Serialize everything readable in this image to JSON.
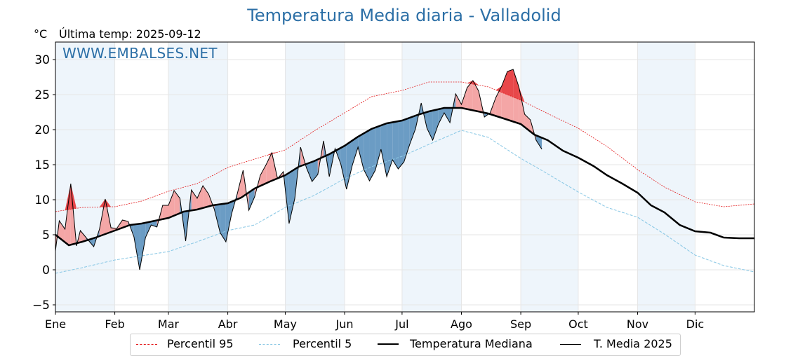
{
  "header": {
    "title": "Temperatura Media diaria - Valladolid",
    "unit": "°C",
    "last_temp": "Última temp: 2025-09-12",
    "watermark": "WWW.EMBALSES.NET"
  },
  "colors": {
    "title": "#2c6fa6",
    "p95": "#e31a1c",
    "p5": "#8ecae6",
    "median": "#000000",
    "t2025": "#000000",
    "above_median_fill": "#f4a6a6",
    "above_p95_fill": "#e8474a",
    "below_median_fill": "#6b9cc4",
    "month_band": "#eef5fb"
  },
  "chart_data": {
    "type": "line",
    "title": "Temperatura Media diaria - Valladolid",
    "ylabel": "°C",
    "ylim": [
      -6,
      32.5
    ],
    "yticks": [
      -5,
      0,
      5,
      10,
      15,
      20,
      25,
      30
    ],
    "ytick_labels": [
      "−5",
      "0",
      "5",
      "10",
      "15",
      "20",
      "25",
      "30"
    ],
    "xlim": [
      1,
      366
    ],
    "xtick_days": [
      1,
      32,
      60,
      91,
      121,
      152,
      182,
      213,
      244,
      274,
      305,
      335
    ],
    "xtick_labels": [
      "Ene",
      "Feb",
      "Mar",
      "Abr",
      "May",
      "Jun",
      "Jul",
      "Ago",
      "Sep",
      "Oct",
      "Nov",
      "Dic"
    ],
    "grid": true,
    "legend_position": "bottom",
    "series": [
      {
        "name": "Percentil 95",
        "x": [
          1,
          15,
          32,
          46,
          60,
          75,
          91,
          105,
          121,
          136,
          152,
          166,
          182,
          196,
          213,
          227,
          244,
          258,
          274,
          289,
          305,
          319,
          335,
          350,
          366
        ],
        "y": [
          8.3,
          8.9,
          9.0,
          9.8,
          11.2,
          12.3,
          14.6,
          15.8,
          17.1,
          19.8,
          22.4,
          24.7,
          25.6,
          26.8,
          26.8,
          26.1,
          24.2,
          22.3,
          20.2,
          17.6,
          14.3,
          11.8,
          9.7,
          9.0,
          9.4
        ]
      },
      {
        "name": "Percentil 5",
        "x": [
          1,
          15,
          32,
          46,
          60,
          75,
          91,
          105,
          121,
          136,
          152,
          166,
          182,
          196,
          213,
          227,
          244,
          258,
          274,
          289,
          305,
          319,
          335,
          350,
          366
        ],
        "y": [
          -0.5,
          0.3,
          1.4,
          2.0,
          2.6,
          4.0,
          5.6,
          6.4,
          8.9,
          10.6,
          13.0,
          14.7,
          16.2,
          17.9,
          19.9,
          18.9,
          15.9,
          13.7,
          11.1,
          8.9,
          7.5,
          5.1,
          2.1,
          0.6,
          -0.3
        ]
      },
      {
        "name": "Temperatura Mediana",
        "x": [
          1,
          8,
          15,
          22,
          32,
          40,
          46,
          53,
          60,
          68,
          75,
          83,
          91,
          98,
          105,
          113,
          121,
          128,
          136,
          144,
          152,
          159,
          166,
          174,
          182,
          190,
          196,
          204,
          213,
          220,
          227,
          235,
          244,
          251,
          258,
          266,
          274,
          282,
          289,
          297,
          305,
          312,
          319,
          327,
          335,
          343,
          350,
          358,
          366
        ],
        "y": [
          5.0,
          3.5,
          4.0,
          4.6,
          5.6,
          6.4,
          6.6,
          7.0,
          7.4,
          8.3,
          8.6,
          9.2,
          9.5,
          10.3,
          11.6,
          12.6,
          13.5,
          14.7,
          15.5,
          16.5,
          17.7,
          19.0,
          20.1,
          20.9,
          21.3,
          22.1,
          22.6,
          23.1,
          23.1,
          22.7,
          22.3,
          21.6,
          20.8,
          19.3,
          18.5,
          17.0,
          16.0,
          14.8,
          13.5,
          12.3,
          11.0,
          9.2,
          8.2,
          6.4,
          5.5,
          5.3,
          4.6,
          4.5,
          4.5
        ]
      },
      {
        "name": "T. Media 2025",
        "x": [
          1,
          3,
          6,
          9,
          12,
          14,
          17,
          21,
          24,
          27,
          30,
          33,
          36,
          39,
          42,
          45,
          48,
          51,
          54,
          57,
          60,
          63,
          66,
          69,
          72,
          75,
          78,
          81,
          84,
          87,
          90,
          93,
          96,
          99,
          102,
          105,
          108,
          111,
          114,
          117,
          120,
          123,
          126,
          129,
          132,
          135,
          138,
          141,
          144,
          147,
          150,
          153,
          156,
          159,
          162,
          165,
          168,
          171,
          174,
          177,
          180,
          183,
          186,
          189,
          192,
          195,
          198,
          201,
          204,
          207,
          210,
          213,
          216,
          219,
          222,
          225,
          228,
          231,
          234,
          237,
          240,
          243,
          246,
          249,
          252,
          255
        ],
        "y": [
          2.7,
          7.0,
          5.8,
          12.3,
          3.4,
          5.6,
          4.6,
          3.3,
          5.8,
          10.1,
          6.0,
          5.9,
          7.1,
          6.9,
          4.7,
          0.0,
          4.6,
          6.4,
          6.1,
          9.2,
          9.2,
          11.3,
          10.2,
          4.1,
          11.4,
          10.2,
          12.0,
          10.8,
          8.6,
          5.3,
          4.0,
          8.0,
          10.9,
          14.2,
          8.5,
          10.4,
          13.5,
          15.0,
          16.7,
          13.0,
          14.0,
          6.6,
          10.2,
          17.5,
          14.6,
          12.6,
          13.6,
          18.4,
          13.3,
          17.3,
          15.1,
          11.5,
          14.9,
          17.5,
          14.3,
          12.7,
          14.2,
          17.2,
          13.3,
          15.7,
          14.4,
          15.4,
          17.9,
          20.1,
          23.8,
          20.2,
          18.5,
          20.8,
          22.4,
          21.0,
          25.1,
          23.6,
          26.0,
          27.0,
          25.5,
          21.8,
          22.4,
          24.6,
          26.2,
          28.3,
          28.6,
          26.1,
          22.2,
          21.4,
          18.5,
          17.2
        ]
      }
    ]
  },
  "legend": {
    "p95": "Percentil 95",
    "p5": "Percentil 5",
    "median": "Temperatura Mediana",
    "t2025": "T. Media 2025"
  }
}
